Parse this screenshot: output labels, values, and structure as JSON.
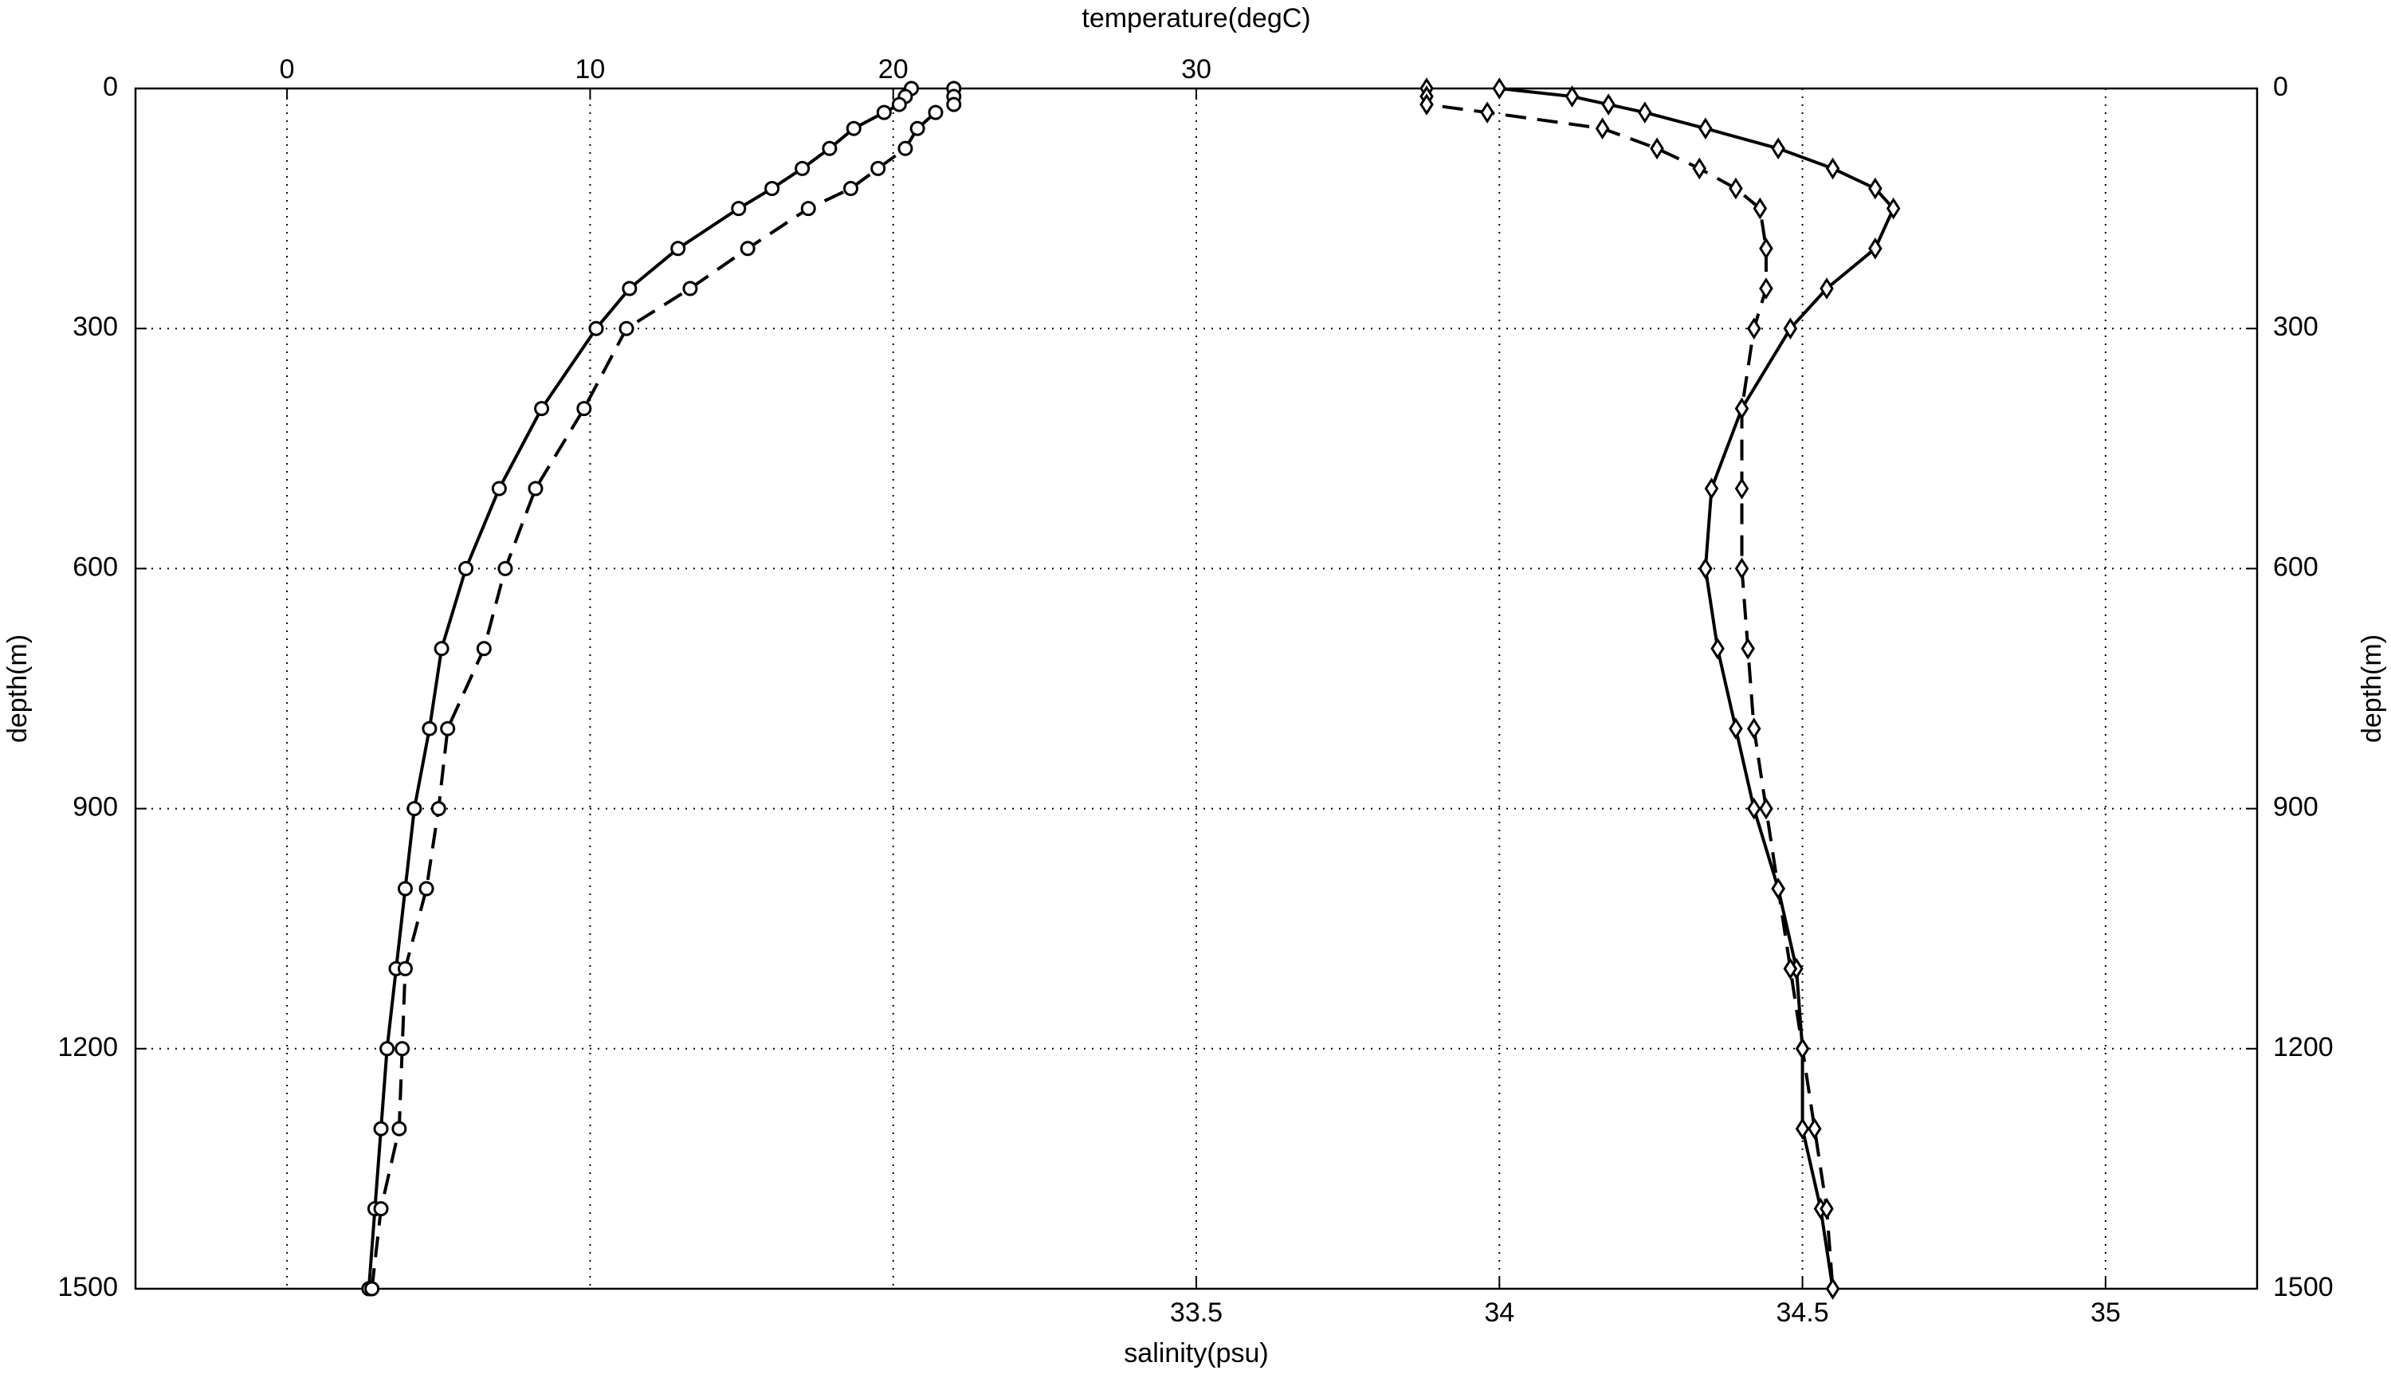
{
  "chart_data": {
    "type": "line",
    "xlabel": "temperature(degC)",
    "x2label": "salinity(psu)",
    "ylabel": "depth(m)",
    "y2label": "depth(m)",
    "xlim": [
      -5,
      65
    ],
    "xticks": [
      0,
      10,
      20,
      30
    ],
    "x2lim": [
      31.75,
      35.25
    ],
    "x2ticks": [
      33.5,
      34,
      34.5,
      35
    ],
    "ylim": [
      0,
      1500
    ],
    "yticks": [
      0,
      300,
      600,
      900,
      1200,
      1500
    ],
    "yreverse": true,
    "grid": true,
    "depth": [
      0,
      10,
      20,
      30,
      50,
      75,
      100,
      125,
      150,
      200,
      250,
      300,
      400,
      500,
      600,
      700,
      800,
      900,
      1000,
      1100,
      1200,
      1300,
      1400,
      1500
    ],
    "series": [
      {
        "color": "#000000",
        "linestyle": "solid",
        "marker": "circle",
        "axis": "x",
        "values": [
          20.6,
          20.4,
          20.2,
          19.7,
          18.7,
          17.9,
          17.0,
          16.0,
          14.9,
          12.9,
          11.3,
          10.2,
          8.4,
          7.0,
          5.9,
          5.1,
          4.7,
          4.2,
          3.9,
          3.6,
          3.3,
          3.1,
          2.9,
          2.7
        ]
      },
      {
        "color": "#000000",
        "linestyle": "dashed",
        "marker": "circle",
        "axis": "x",
        "values": [
          22.0,
          22.0,
          22.0,
          21.4,
          20.8,
          20.4,
          19.5,
          18.6,
          17.2,
          15.2,
          13.3,
          11.2,
          9.8,
          8.2,
          7.2,
          6.5,
          5.3,
          5.0,
          4.6,
          3.9,
          3.8,
          3.7,
          3.1,
          2.8
        ]
      },
      {
        "color": "#000000",
        "linestyle": "solid",
        "marker": "diamond",
        "axis": "x2",
        "values": [
          34.0,
          34.12,
          34.18,
          34.24,
          34.34,
          34.46,
          34.55,
          34.62,
          34.65,
          34.62,
          34.54,
          34.48,
          34.4,
          34.35,
          34.34,
          34.36,
          34.39,
          34.42,
          34.46,
          34.49,
          34.5,
          34.5,
          34.53,
          34.55
        ]
      },
      {
        "color": "#000000",
        "linestyle": "dashed",
        "marker": "diamond",
        "axis": "x2",
        "values": [
          33.88,
          33.88,
          33.88,
          33.98,
          34.17,
          34.26,
          34.33,
          34.39,
          34.43,
          34.44,
          34.44,
          34.42,
          34.4,
          34.4,
          34.4,
          34.41,
          34.42,
          34.44,
          34.46,
          34.48,
          34.5,
          34.52,
          34.54,
          34.55
        ]
      }
    ]
  }
}
